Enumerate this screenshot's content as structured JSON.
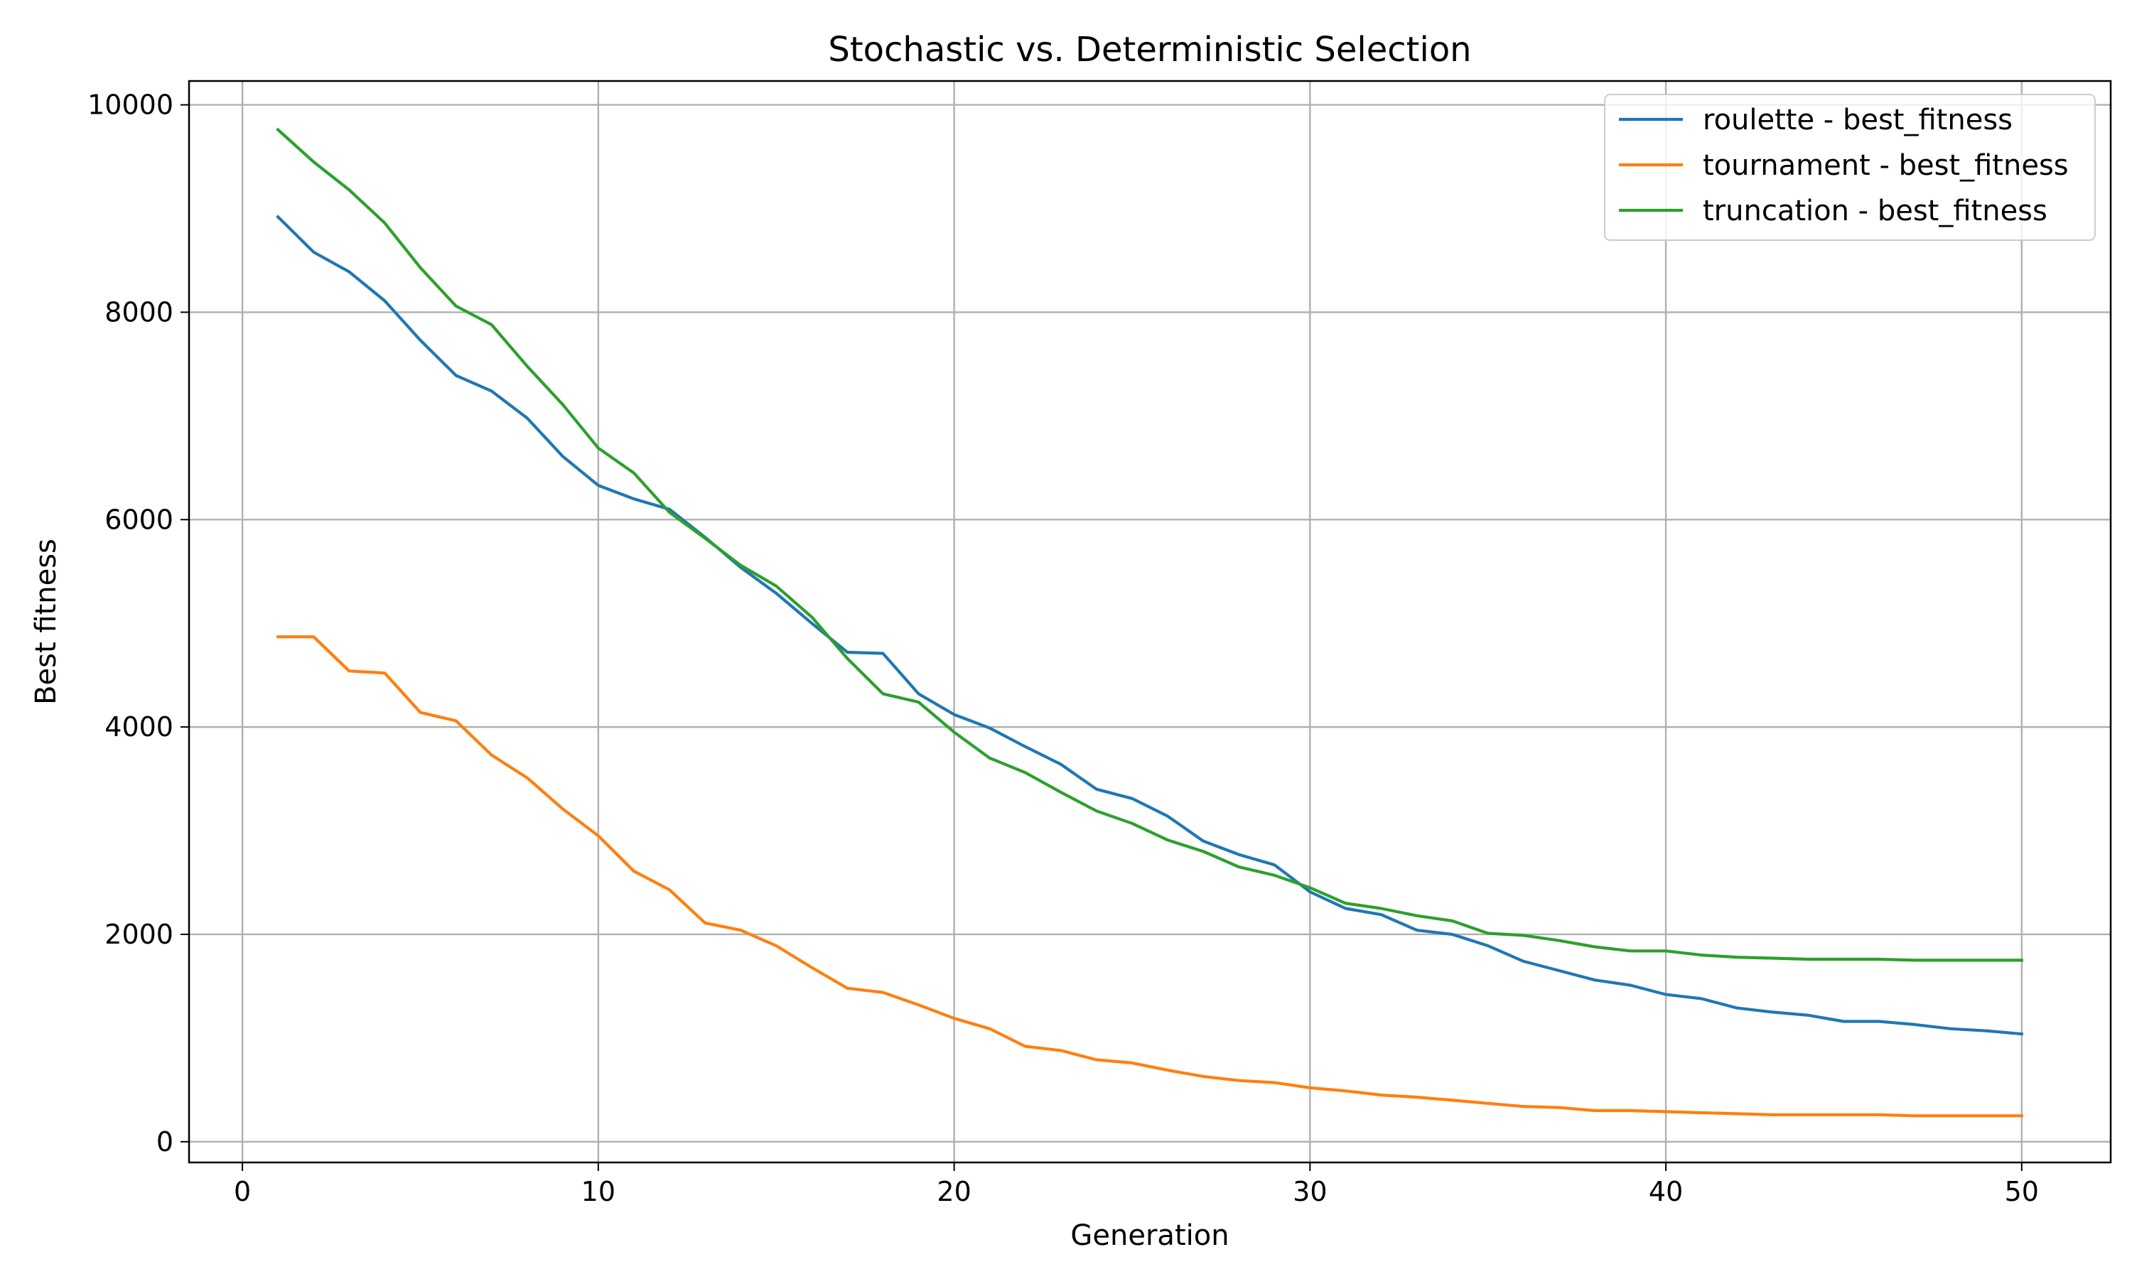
{
  "chart_data": {
    "type": "line",
    "title": "Stochastic vs. Deterministic Selection",
    "xlabel": "Generation",
    "ylabel": "Best fitness",
    "xlim": [
      -1.5,
      52.5
    ],
    "ylim": [
      -200,
      10230
    ],
    "xticks": [
      0,
      10,
      20,
      30,
      40,
      50
    ],
    "yticks": [
      0,
      2000,
      4000,
      6000,
      8000,
      10000
    ],
    "grid": true,
    "legend_position": "top-right",
    "x": [
      1,
      2,
      3,
      4,
      5,
      6,
      7,
      8,
      9,
      10,
      11,
      12,
      13,
      14,
      15,
      16,
      17,
      18,
      19,
      20,
      21,
      22,
      23,
      24,
      25,
      26,
      27,
      28,
      29,
      30,
      31,
      32,
      33,
      34,
      35,
      36,
      37,
      38,
      39,
      40,
      41,
      42,
      43,
      44,
      45,
      46,
      47,
      48,
      49,
      50
    ],
    "series": [
      {
        "name": "roulette - best_fitness",
        "color": "#1f77b4",
        "values": [
          8920,
          8580,
          8390,
          8110,
          7730,
          7390,
          7240,
          6980,
          6610,
          6330,
          6200,
          6100,
          5830,
          5540,
          5290,
          5000,
          4720,
          4710,
          4320,
          4120,
          3990,
          3810,
          3640,
          3400,
          3310,
          3140,
          2900,
          2770,
          2670,
          2410,
          2250,
          2190,
          2040,
          2000,
          1890,
          1740,
          1650,
          1560,
          1510,
          1420,
          1380,
          1290,
          1250,
          1220,
          1160,
          1160,
          1130,
          1090,
          1070,
          1040
        ]
      },
      {
        "name": "tournament - best_fitness",
        "color": "#ff7f0e",
        "values": [
          4870,
          4870,
          4540,
          4520,
          4140,
          4060,
          3730,
          3510,
          3210,
          2950,
          2610,
          2430,
          2110,
          2040,
          1890,
          1680,
          1480,
          1440,
          1320,
          1190,
          1090,
          920,
          880,
          790,
          760,
          690,
          630,
          590,
          570,
          520,
          490,
          450,
          430,
          400,
          370,
          340,
          330,
          300,
          300,
          290,
          280,
          270,
          260,
          260,
          260,
          260,
          250,
          250,
          250,
          250
        ]
      },
      {
        "name": "truncation - best_fitness",
        "color": "#2ca02c",
        "values": [
          9760,
          9450,
          9180,
          8860,
          8430,
          8060,
          7880,
          7480,
          7110,
          6690,
          6450,
          6070,
          5820,
          5560,
          5360,
          5060,
          4660,
          4320,
          4240,
          3950,
          3700,
          3560,
          3370,
          3190,
          3070,
          2910,
          2800,
          2650,
          2570,
          2450,
          2300,
          2250,
          2180,
          2130,
          2010,
          1990,
          1940,
          1880,
          1840,
          1840,
          1800,
          1780,
          1770,
          1760,
          1760,
          1760,
          1750,
          1750,
          1750,
          1750
        ]
      }
    ]
  }
}
